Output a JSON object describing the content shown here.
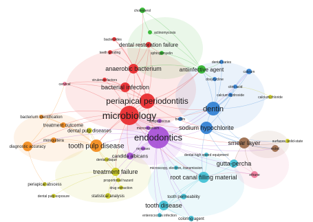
{
  "diagram": {
    "type": "co-occurrence-network",
    "clusters": {
      "red": "#e8282b",
      "green": "#2fb52c",
      "blue": "#2f7fd3",
      "purple": "#a64fd6",
      "orange": "#f28a1a",
      "yellow": "#c9c81d",
      "cyan": "#3fbfd4",
      "pink": "#f07a9a",
      "brown": "#9b6a4a"
    },
    "nodes": [
      {
        "id": "n1",
        "label": "cholesterol",
        "cluster": "green",
        "r": 4
      },
      {
        "id": "n2",
        "label": "actinomycosis",
        "cluster": "green",
        "r": 3
      },
      {
        "id": "n3",
        "label": "bacteroides",
        "cluster": "red",
        "r": 3
      },
      {
        "id": "n4",
        "label": "dental restoration failure",
        "cluster": "red",
        "r": 4
      },
      {
        "id": "n5",
        "label": "teeth grinding",
        "cluster": "red",
        "r": 3
      },
      {
        "id": "n6",
        "label": "sphingomyelin",
        "cluster": "green",
        "r": 3
      },
      {
        "id": "n7",
        "label": "anaerobic bacterium",
        "cluster": "red",
        "r": 7
      },
      {
        "id": "n8",
        "label": "antiinfective agent",
        "cluster": "green",
        "r": 6
      },
      {
        "id": "n9",
        "label": "dental caries",
        "cluster": "blue",
        "r": 3
      },
      {
        "id": "n10",
        "label": "calcium",
        "cluster": "blue",
        "r": 4
      },
      {
        "id": "n11",
        "label": "virulence factors",
        "cluster": "red",
        "r": 3
      },
      {
        "id": "n12",
        "label": "doxycycline",
        "cluster": "blue",
        "r": 3
      },
      {
        "id": "n13",
        "label": "citric acid",
        "cluster": "blue",
        "r": 3
      },
      {
        "id": "n14",
        "label": "cervical",
        "cluster": "pink",
        "r": 3
      },
      {
        "id": "n15",
        "label": "bacterial infection",
        "cluster": "red",
        "r": 7
      },
      {
        "id": "n16",
        "label": "calcium chloride",
        "cluster": "yellow",
        "r": 3
      },
      {
        "id": "n17",
        "label": "periapical periodontitis",
        "cluster": "red",
        "r": 11
      },
      {
        "id": "n18",
        "label": "microbiology",
        "cluster": "red",
        "r": 14
      },
      {
        "id": "n19",
        "label": "dentin",
        "cluster": "blue",
        "r": 10
      },
      {
        "id": "n20",
        "label": "bacterium identification",
        "cluster": "orange",
        "r": 3
      },
      {
        "id": "n21",
        "label": "streptococcus",
        "cluster": "purple",
        "r": 3
      },
      {
        "id": "n22",
        "label": "biofilm",
        "cluster": "blue",
        "r": 3
      },
      {
        "id": "n23",
        "label": "sodium hypochlorite",
        "cluster": "blue",
        "r": 9
      },
      {
        "id": "n24",
        "label": "treatment outcome",
        "cluster": "orange",
        "r": 4
      },
      {
        "id": "n25",
        "label": "dental pulp diseases",
        "cluster": "yellow",
        "r": 4
      },
      {
        "id": "n26",
        "label": "endodontics",
        "cluster": "purple",
        "r": 16
      },
      {
        "id": "n27",
        "label": "mosquitera",
        "cluster": "orange",
        "r": 4
      },
      {
        "id": "n28",
        "label": "tooth pulp disease",
        "cluster": "orange",
        "r": 9
      },
      {
        "id": "n29",
        "label": "smear layer",
        "cluster": "brown",
        "r": 8
      },
      {
        "id": "n30",
        "label": "diagnostic accuracy",
        "cluster": "orange",
        "r": 7
      },
      {
        "id": "n31",
        "label": "surfaces, solid-state",
        "cluster": "yellow",
        "r": 3
      },
      {
        "id": "n32",
        "label": "microorganism",
        "cluster": "purple",
        "r": 3
      },
      {
        "id": "n33",
        "label": "mycoses",
        "cluster": "purple",
        "r": 3
      },
      {
        "id": "n34",
        "label": "dental high speed equipment",
        "cluster": "cyan",
        "r": 3
      },
      {
        "id": "n35",
        "label": "dental plaque",
        "cluster": "yellow",
        "r": 3
      },
      {
        "id": "n36",
        "label": "candida albicans",
        "cluster": "purple",
        "r": 5
      },
      {
        "id": "n37",
        "label": "gutta-percha",
        "cluster": "cyan",
        "r": 6
      },
      {
        "id": "n38",
        "label": "treatment failure",
        "cluster": "yellow",
        "r": 6
      },
      {
        "id": "n39",
        "label": "microscopy, electron, transmission",
        "cluster": "cyan",
        "r": 3
      },
      {
        "id": "n40",
        "label": "periapical abscess",
        "cluster": "yellow",
        "r": 3
      },
      {
        "id": "n41",
        "label": "root canal filling material",
        "cluster": "cyan",
        "r": 8
      },
      {
        "id": "n42",
        "label": "proportional hazard",
        "cluster": "yellow",
        "r": 3
      },
      {
        "id": "n43",
        "label": "drug extraction",
        "cluster": "yellow",
        "r": 3
      },
      {
        "id": "n44",
        "label": "statistical analysis",
        "cluster": "yellow",
        "r": 4
      },
      {
        "id": "n45",
        "label": "dental pulp exposure",
        "cluster": "yellow",
        "r": 3
      },
      {
        "id": "n46",
        "label": "tooth permeability",
        "cluster": "cyan",
        "r": 4
      },
      {
        "id": "n47",
        "label": "tooth disease",
        "cluster": "cyan",
        "r": 7
      },
      {
        "id": "n48",
        "label": "enterococcus infection",
        "cluster": "cyan",
        "r": 3
      },
      {
        "id": "n49",
        "label": "coloring agent",
        "cluster": "cyan",
        "r": 4
      },
      {
        "id": "n50",
        "label": "ethane",
        "cluster": "pink",
        "r": 5
      },
      {
        "id": "n51",
        "label": "calcium hydroxide",
        "cluster": "blue",
        "r": 3
      },
      {
        "id": "n52",
        "label": "nickel",
        "cluster": "brown",
        "r": 5
      }
    ],
    "edges": [
      [
        "n18",
        "n17"
      ],
      [
        "n18",
        "n26"
      ],
      [
        "n18",
        "n15"
      ],
      [
        "n18",
        "n7"
      ],
      [
        "n18",
        "n19"
      ],
      [
        "n18",
        "n23"
      ],
      [
        "n18",
        "n28"
      ],
      [
        "n18",
        "n30"
      ],
      [
        "n18",
        "n24"
      ],
      [
        "n18",
        "n20"
      ],
      [
        "n18",
        "n14"
      ],
      [
        "n18",
        "n11"
      ],
      [
        "n18",
        "n36"
      ],
      [
        "n18",
        "n29"
      ],
      [
        "n18",
        "n41"
      ],
      [
        "n18",
        "n38"
      ],
      [
        "n18",
        "n4"
      ],
      [
        "n18",
        "n8"
      ],
      [
        "n17",
        "n26"
      ],
      [
        "n17",
        "n15"
      ],
      [
        "n17",
        "n7"
      ],
      [
        "n17",
        "n19"
      ],
      [
        "n17",
        "n23"
      ],
      [
        "n17",
        "n28"
      ],
      [
        "n17",
        "n8"
      ],
      [
        "n17",
        "n3"
      ],
      [
        "n17",
        "n4"
      ],
      [
        "n17",
        "n11"
      ],
      [
        "n17",
        "n14"
      ],
      [
        "n26",
        "n19"
      ],
      [
        "n26",
        "n23"
      ],
      [
        "n26",
        "n29"
      ],
      [
        "n26",
        "n41"
      ],
      [
        "n26",
        "n37"
      ],
      [
        "n26",
        "n36"
      ],
      [
        "n26",
        "n28"
      ],
      [
        "n26",
        "n38"
      ],
      [
        "n26",
        "n47"
      ],
      [
        "n26",
        "n46"
      ],
      [
        "n26",
        "n30"
      ],
      [
        "n26",
        "n33"
      ],
      [
        "n26",
        "n32"
      ],
      [
        "n26",
        "n39"
      ],
      [
        "n26",
        "n34"
      ],
      [
        "n26",
        "n25"
      ],
      [
        "n26",
        "n44"
      ],
      [
        "n26",
        "n48"
      ],
      [
        "n26",
        "n49"
      ],
      [
        "n26",
        "n50"
      ],
      [
        "n26",
        "n52"
      ],
      [
        "n26",
        "n10"
      ],
      [
        "n19",
        "n23"
      ],
      [
        "n19",
        "n29"
      ],
      [
        "n19",
        "n13"
      ],
      [
        "n19",
        "n10"
      ],
      [
        "n19",
        "n12"
      ],
      [
        "n19",
        "n9"
      ],
      [
        "n19",
        "n16"
      ],
      [
        "n19",
        "n22"
      ],
      [
        "n19",
        "n51"
      ],
      [
        "n19",
        "n8"
      ],
      [
        "n23",
        "n29"
      ],
      [
        "n23",
        "n13"
      ],
      [
        "n23",
        "n37"
      ],
      [
        "n23",
        "n41"
      ],
      [
        "n23",
        "n52"
      ],
      [
        "n23",
        "n31"
      ],
      [
        "n29",
        "n52"
      ],
      [
        "n29",
        "n31"
      ],
      [
        "n29",
        "n50"
      ],
      [
        "n29",
        "n37"
      ],
      [
        "n8",
        "n1"
      ],
      [
        "n8",
        "n2"
      ],
      [
        "n8",
        "n6"
      ],
      [
        "n8",
        "n7"
      ],
      [
        "n8",
        "n12"
      ],
      [
        "n8",
        "n9"
      ],
      [
        "n7",
        "n3"
      ],
      [
        "n7",
        "n5"
      ],
      [
        "n7",
        "n4"
      ],
      [
        "n7",
        "n15"
      ],
      [
        "n7",
        "n1"
      ],
      [
        "n15",
        "n11"
      ],
      [
        "n15",
        "n14"
      ],
      [
        "n28",
        "n30"
      ],
      [
        "n28",
        "n27"
      ],
      [
        "n28",
        "n24"
      ],
      [
        "n28",
        "n25"
      ],
      [
        "n28",
        "n20"
      ],
      [
        "n28",
        "n38"
      ],
      [
        "n30",
        "n27"
      ],
      [
        "n30",
        "n14"
      ],
      [
        "n30",
        "n40"
      ],
      [
        "n38",
        "n42"
      ],
      [
        "n38",
        "n43"
      ],
      [
        "n38",
        "n44"
      ],
      [
        "n38",
        "n35"
      ],
      [
        "n38",
        "n40"
      ],
      [
        "n38",
        "n45"
      ],
      [
        "n41",
        "n37"
      ],
      [
        "n41",
        "n39"
      ],
      [
        "n41",
        "n34"
      ],
      [
        "n41",
        "n46"
      ],
      [
        "n41",
        "n47"
      ],
      [
        "n41",
        "n48"
      ],
      [
        "n47",
        "n46"
      ],
      [
        "n47",
        "n48"
      ],
      [
        "n47",
        "n49"
      ],
      [
        "n36",
        "n33"
      ],
      [
        "n36",
        "n32"
      ],
      [
        "n36",
        "n35"
      ],
      [
        "n50",
        "n37"
      ],
      [
        "n50",
        "n41"
      ],
      [
        "n4",
        "n5"
      ],
      [
        "n4",
        "n6"
      ],
      [
        "n1",
        "n2"
      ],
      [
        "n10",
        "n13"
      ],
      [
        "n16",
        "n13"
      ],
      [
        "n24",
        "n20"
      ],
      [
        "n25",
        "n35"
      ]
    ]
  }
}
